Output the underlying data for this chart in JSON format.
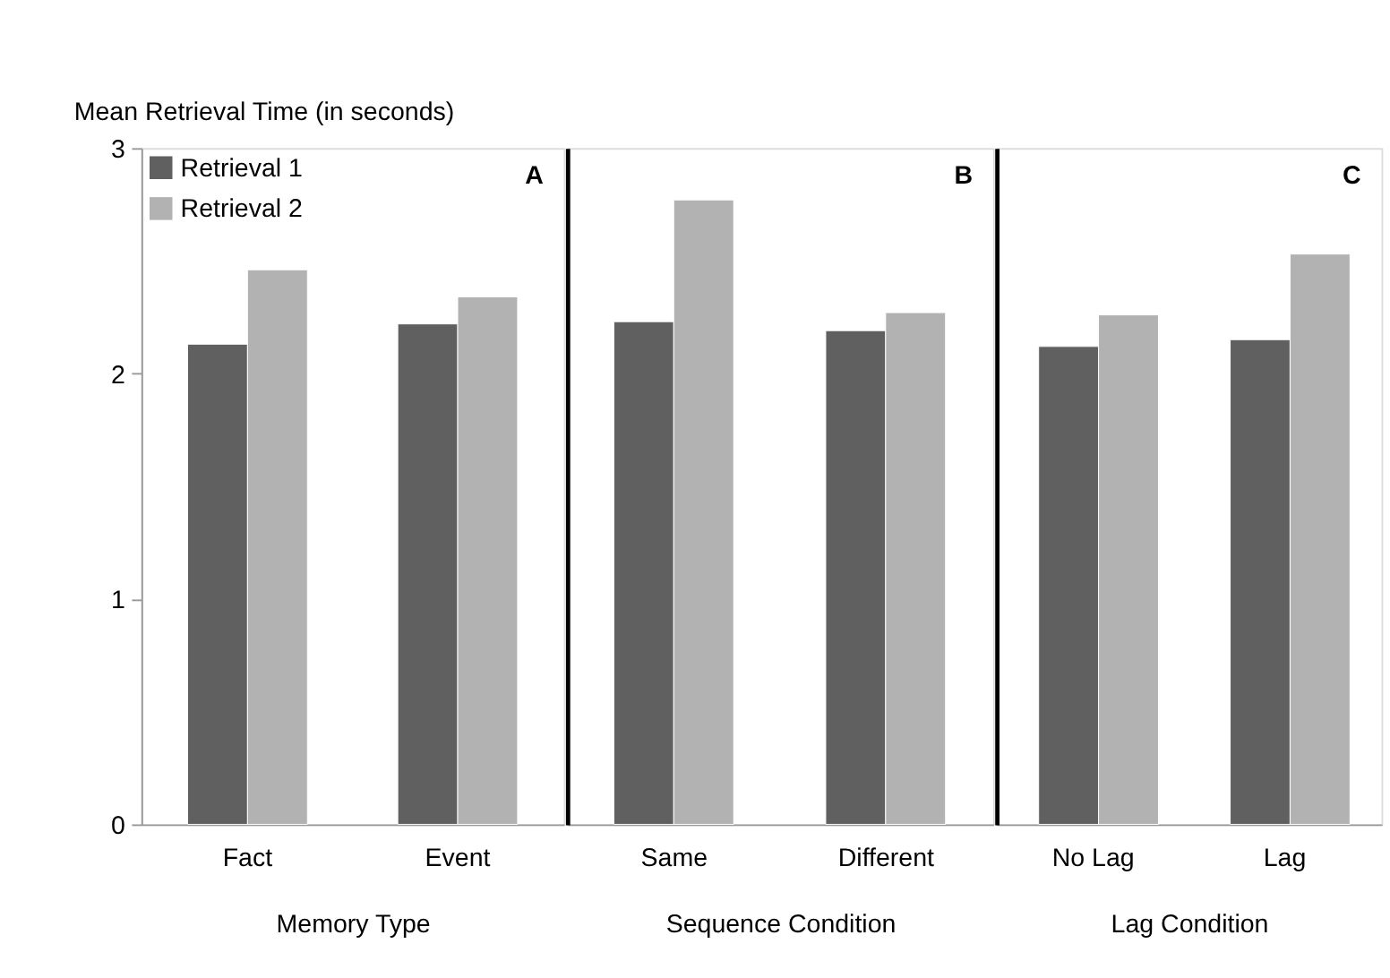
{
  "chart_data": [
    {
      "type": "bar",
      "ylabel": "Mean Retrieval Time (in seconds)",
      "xlabel": "Memory Type",
      "categories": [
        "Fact",
        "Event"
      ],
      "series": [
        {
          "name": "Retrieval 1",
          "color": "#606060",
          "values": [
            2.13,
            2.22
          ]
        },
        {
          "name": "Retrieval 2",
          "color": "#b2b2b2",
          "values": [
            2.46,
            2.34
          ]
        }
      ],
      "ylim": [
        0,
        3
      ],
      "yticks": [
        0,
        1,
        2,
        3
      ],
      "grid": false,
      "legend": "top left",
      "annotations": [
        "A"
      ]
    },
    {
      "type": "bar",
      "xlabel": "Sequence Condition",
      "categories": [
        "Same",
        "Different"
      ],
      "series": [
        {
          "color": "#606060",
          "values": [
            2.23,
            2.19
          ]
        },
        {
          "color": "#b2b2b2",
          "values": [
            2.77,
            2.27
          ]
        }
      ],
      "ylim": [
        0,
        3
      ],
      "grid": false,
      "tick_labels": "x",
      "annotations": [
        "B"
      ]
    },
    {
      "type": "bar",
      "xlabel": "Lag Condition",
      "categories": [
        "No Lag",
        "Lag"
      ],
      "series": [
        {
          "color": "#606060",
          "values": [
            2.12,
            2.15
          ]
        },
        {
          "color": "#b2b2b2",
          "values": [
            2.26,
            2.53
          ]
        }
      ],
      "ylim": [
        0,
        3
      ],
      "grid": false,
      "tick_labels": "x",
      "annotations": [
        "C"
      ]
    }
  ]
}
